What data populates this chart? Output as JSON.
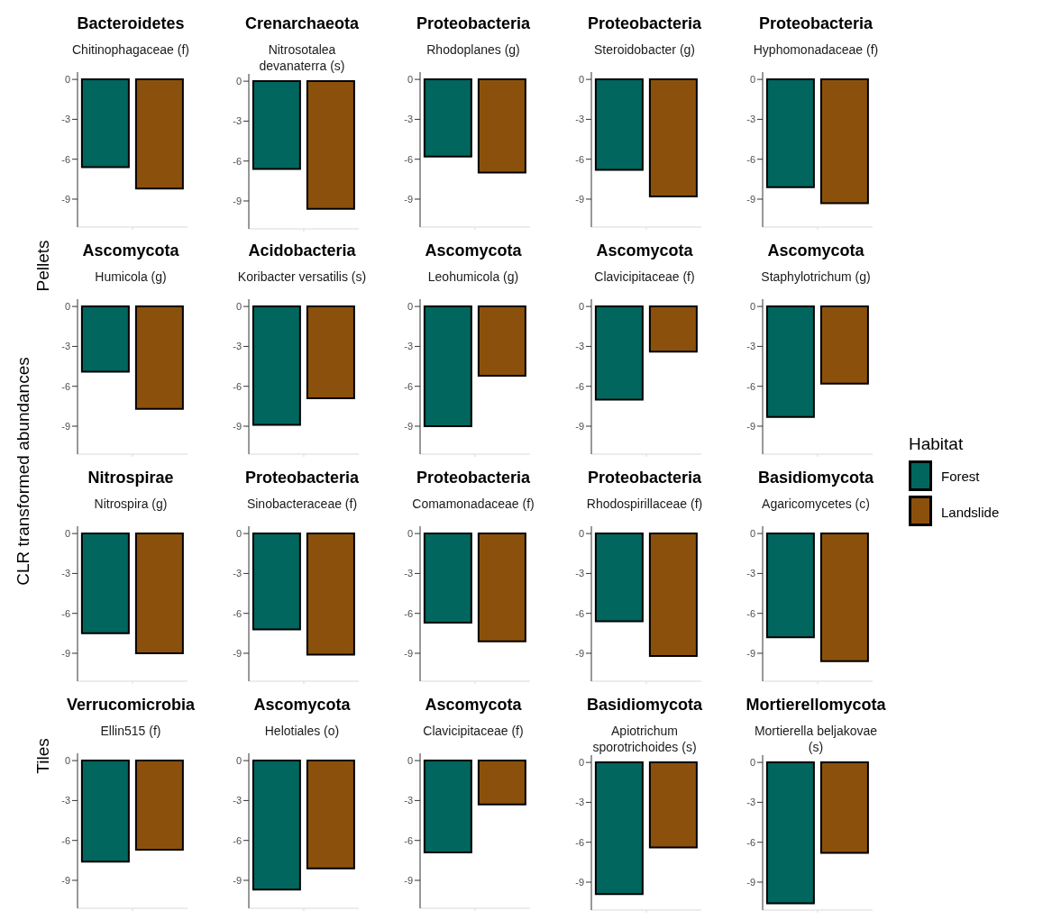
{
  "chart_data": [
    {
      "type": "bar",
      "title": "Bacteroidetes",
      "subtitle": "Chitinophagaceae (f)",
      "categories": [
        null
      ],
      "series": [
        {
          "color": "#00665e",
          "values": [
            -6.6
          ]
        },
        {
          "color": "#8b510c",
          "values": [
            -8.2
          ]
        }
      ],
      "ylim": [
        -11.1,
        0.55
      ],
      "yticks": [
        0,
        -3,
        -6,
        -9
      ]
    },
    {
      "type": "bar",
      "title": "Crenarchaeota",
      "subtitle": "Nitrosotalea devanaterra (s)",
      "categories": [
        null
      ],
      "series": [
        {
          "color": "#00665e",
          "values": [
            -6.6
          ]
        },
        {
          "color": "#8b510c",
          "values": [
            -9.6
          ]
        }
      ],
      "ylim": [
        -11.1,
        0.55
      ],
      "yticks": [
        0,
        -3,
        -6,
        -9
      ]
    },
    {
      "type": "bar",
      "title": "Proteobacteria",
      "subtitle": "Rhodoplanes (g)",
      "categories": [
        null
      ],
      "series": [
        {
          "color": "#00665e",
          "values": [
            -5.8
          ]
        },
        {
          "color": "#8b510c",
          "values": [
            -7.0
          ]
        }
      ],
      "ylim": [
        -11.1,
        0.55
      ],
      "yticks": [
        0,
        -3,
        -6,
        -9
      ]
    },
    {
      "type": "bar",
      "title": "Proteobacteria",
      "subtitle": "Steroidobacter (g)",
      "categories": [
        null
      ],
      "series": [
        {
          "color": "#00665e",
          "values": [
            -6.8
          ]
        },
        {
          "color": "#8b510c",
          "values": [
            -8.8
          ]
        }
      ],
      "ylim": [
        -11.1,
        0.55
      ],
      "yticks": [
        0,
        -3,
        -6,
        -9
      ]
    },
    {
      "type": "bar",
      "title": "Proteobacteria",
      "subtitle": "Hyphomonadaceae (f)",
      "categories": [
        null
      ],
      "series": [
        {
          "color": "#00665e",
          "values": [
            -8.1
          ]
        },
        {
          "color": "#8b510c",
          "values": [
            -9.3
          ]
        }
      ],
      "ylim": [
        -11.1,
        0.55
      ],
      "yticks": [
        0,
        -3,
        -6,
        -9
      ]
    },
    {
      "type": "bar",
      "title": "Ascomycota",
      "subtitle": "Humicola (g)",
      "categories": [
        null
      ],
      "series": [
        {
          "color": "#00665e",
          "values": [
            -4.9
          ]
        },
        {
          "color": "#8b510c",
          "values": [
            -7.7
          ]
        }
      ],
      "ylim": [
        -11.1,
        0.55
      ],
      "yticks": [
        0,
        -3,
        -6,
        -9
      ]
    },
    {
      "type": "bar",
      "title": "Acidobacteria",
      "subtitle": "Koribacter versatilis (s)",
      "categories": [
        null
      ],
      "series": [
        {
          "color": "#00665e",
          "values": [
            -8.9
          ]
        },
        {
          "color": "#8b510c",
          "values": [
            -6.9
          ]
        }
      ],
      "ylim": [
        -11.1,
        0.55
      ],
      "yticks": [
        0,
        -3,
        -6,
        -9
      ]
    },
    {
      "type": "bar",
      "title": "Ascomycota",
      "subtitle": "Leohumicola (g)",
      "categories": [
        null
      ],
      "series": [
        {
          "color": "#00665e",
          "values": [
            -9.0
          ]
        },
        {
          "color": "#8b510c",
          "values": [
            -5.2
          ]
        }
      ],
      "ylim": [
        -11.1,
        0.55
      ],
      "yticks": [
        0,
        -3,
        -6,
        -9
      ]
    },
    {
      "type": "bar",
      "title": "Ascomycota",
      "subtitle": "Clavicipitaceae (f)",
      "categories": [
        null
      ],
      "series": [
        {
          "color": "#00665e",
          "values": [
            -7.0
          ]
        },
        {
          "color": "#8b510c",
          "values": [
            -3.4
          ]
        }
      ],
      "ylim": [
        -11.1,
        0.55
      ],
      "yticks": [
        0,
        -3,
        -6,
        -9
      ]
    },
    {
      "type": "bar",
      "title": "Ascomycota",
      "subtitle": "Staphylotrichum (g)",
      "legend": "right",
      "legend_title": "Habitat",
      "categories": [
        null
      ],
      "series": [
        {
          "name": "Forest",
          "color": "#00665e",
          "values": [
            -8.3
          ]
        },
        {
          "name": "Landslide",
          "color": "#8b510c",
          "values": [
            -5.8
          ]
        }
      ],
      "ylim": [
        -11.1,
        0.55
      ],
      "yticks": [
        0,
        -3,
        -6,
        -9
      ]
    },
    {
      "type": "bar",
      "title": "Nitrospirae",
      "subtitle": "Nitrospira (g)",
      "categories": [
        null
      ],
      "series": [
        {
          "color": "#00665e",
          "values": [
            -7.5
          ]
        },
        {
          "color": "#8b510c",
          "values": [
            -9.0
          ]
        }
      ],
      "ylim": [
        -11.1,
        0.55
      ],
      "yticks": [
        0,
        -3,
        -6,
        -9
      ]
    },
    {
      "type": "bar",
      "title": "Proteobacteria",
      "subtitle": "Sinobacteraceae (f)",
      "categories": [
        null
      ],
      "series": [
        {
          "color": "#00665e",
          "values": [
            -7.2
          ]
        },
        {
          "color": "#8b510c",
          "values": [
            -9.1
          ]
        }
      ],
      "ylim": [
        -11.1,
        0.55
      ],
      "yticks": [
        0,
        -3,
        -6,
        -9
      ]
    },
    {
      "type": "bar",
      "title": "Proteobacteria",
      "subtitle": "Comamonadaceae (f)",
      "categories": [
        null
      ],
      "series": [
        {
          "color": "#00665e",
          "values": [
            -6.7
          ]
        },
        {
          "color": "#8b510c",
          "values": [
            -8.1
          ]
        }
      ],
      "ylim": [
        -11.1,
        0.55
      ],
      "yticks": [
        0,
        -3,
        -6,
        -9
      ]
    },
    {
      "type": "bar",
      "title": "Proteobacteria",
      "subtitle": "Rhodospirillaceae (f)",
      "categories": [
        null
      ],
      "series": [
        {
          "color": "#00665e",
          "values": [
            -6.6
          ]
        },
        {
          "color": "#8b510c",
          "values": [
            -9.2
          ]
        }
      ],
      "ylim": [
        -11.1,
        0.55
      ],
      "yticks": [
        0,
        -3,
        -6,
        -9
      ]
    },
    {
      "type": "bar",
      "title": "Basidiomycota",
      "subtitle": "Agaricomycetes (c)",
      "categories": [
        null
      ],
      "series": [
        {
          "color": "#00665e",
          "values": [
            -7.8
          ]
        },
        {
          "color": "#8b510c",
          "values": [
            -9.6
          ]
        }
      ],
      "ylim": [
        -11.1,
        0.55
      ],
      "yticks": [
        0,
        -3,
        -6,
        -9
      ]
    },
    {
      "type": "bar",
      "title": "Verrucomicrobia",
      "subtitle": "Ellin515 (f)",
      "categories": [
        null
      ],
      "series": [
        {
          "color": "#00665e",
          "values": [
            -7.6
          ]
        },
        {
          "color": "#8b510c",
          "values": [
            -6.7
          ]
        }
      ],
      "ylim": [
        -11.1,
        0.55
      ],
      "yticks": [
        0,
        -3,
        -6,
        -9
      ]
    },
    {
      "type": "bar",
      "title": "Ascomycota",
      "subtitle": "Helotiales (o)",
      "categories": [
        null
      ],
      "series": [
        {
          "color": "#00665e",
          "values": [
            -9.7
          ]
        },
        {
          "color": "#8b510c",
          "values": [
            -8.1
          ]
        }
      ],
      "ylim": [
        -11.1,
        0.55
      ],
      "yticks": [
        0,
        -3,
        -6,
        -9
      ]
    },
    {
      "type": "bar",
      "title": "Ascomycota",
      "subtitle": "Clavicipitaceae (f)",
      "categories": [
        null
      ],
      "series": [
        {
          "color": "#00665e",
          "values": [
            -6.9
          ]
        },
        {
          "color": "#8b510c",
          "values": [
            -3.3
          ]
        }
      ],
      "ylim": [
        -11.1,
        0.55
      ],
      "yticks": [
        0,
        -3,
        -6,
        -9
      ]
    },
    {
      "type": "bar",
      "title": "Basidiomycota",
      "subtitle": "Apiotrichum sporotrichoides (s)",
      "categories": [
        null
      ],
      "series": [
        {
          "color": "#00665e",
          "values": [
            -9.9
          ]
        },
        {
          "color": "#8b510c",
          "values": [
            -6.4
          ]
        }
      ],
      "ylim": [
        -11.1,
        0.55
      ],
      "yticks": [
        0,
        -3,
        -6,
        -9
      ]
    },
    {
      "type": "bar",
      "title": "Mortierellomycota",
      "subtitle": "Mortierella beljakovae (s)",
      "categories": [
        null
      ],
      "series": [
        {
          "color": "#00665e",
          "values": [
            -10.6
          ]
        },
        {
          "color": "#8b510c",
          "values": [
            -6.8
          ]
        }
      ],
      "ylim": [
        -11.1,
        0.55
      ],
      "yticks": [
        0,
        -3,
        -6,
        -9
      ]
    },
    {
      "type": "other",
      "ylabel": "CLR transformed abundances",
      "annotations": [
        "Pellets",
        "Tiles"
      ]
    }
  ]
}
